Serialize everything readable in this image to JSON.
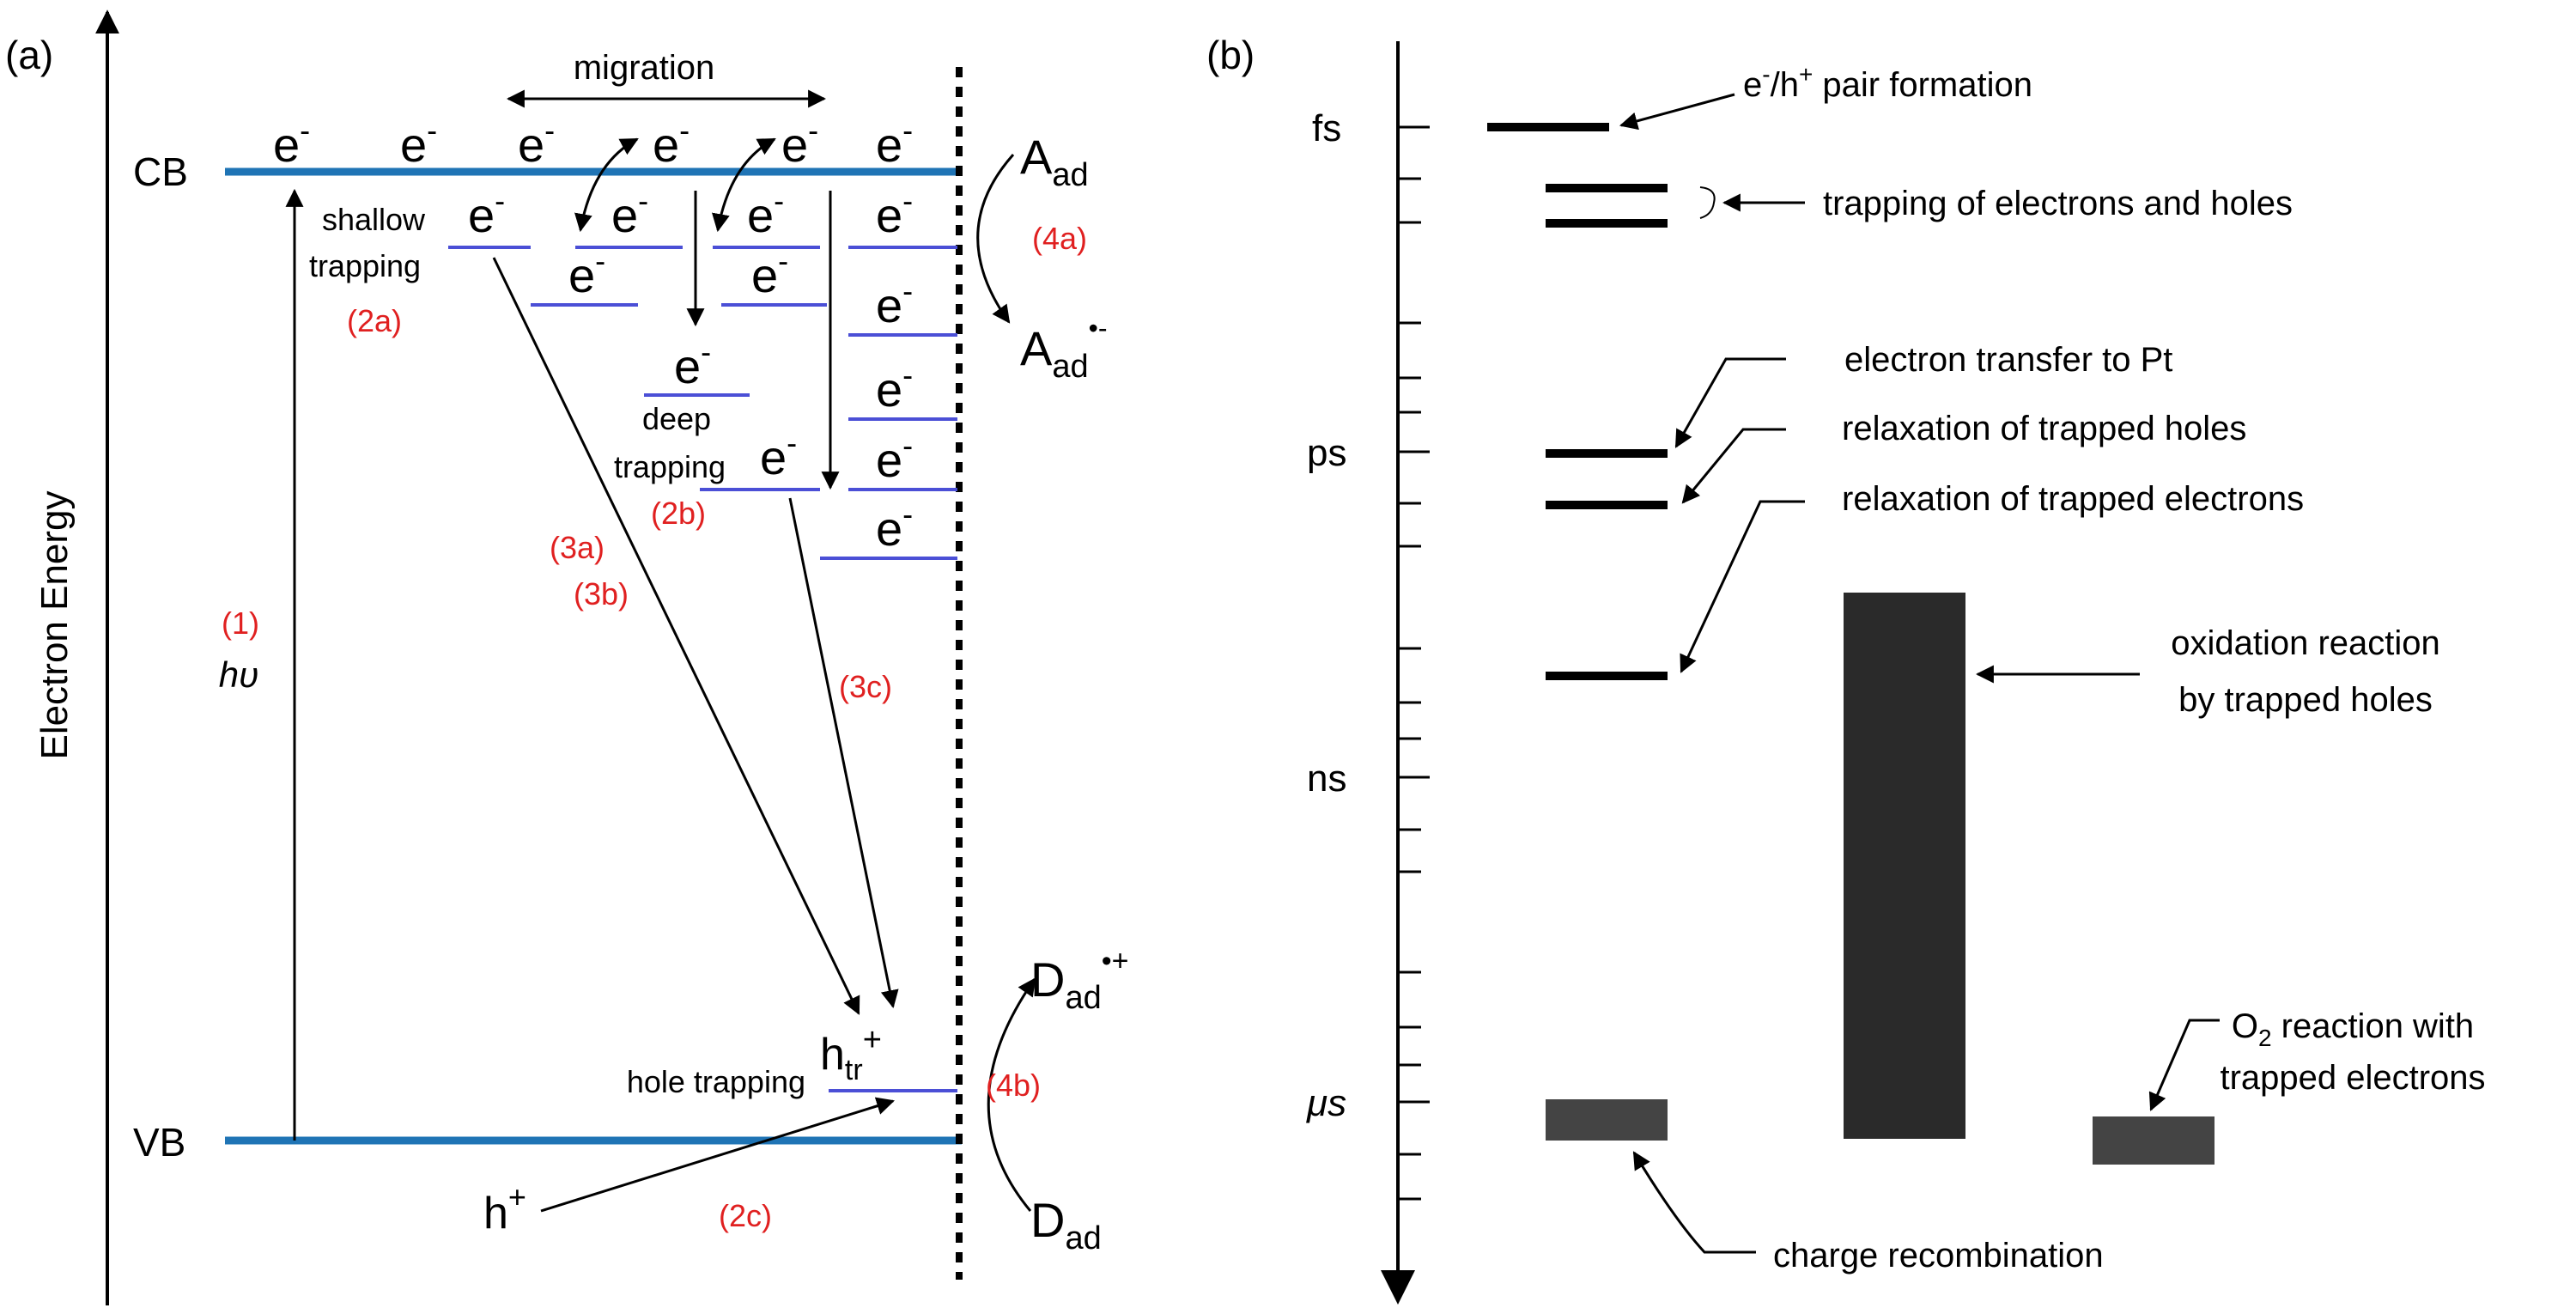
{
  "panel_a": {
    "label": "(a)",
    "axis_label": "Electron Energy",
    "cb_label": "CB",
    "vb_label": "VB",
    "migration_label": "migration",
    "electron": "e",
    "minus": "-",
    "shallow_label": "shallow",
    "trapping_label": "trapping",
    "deep_label": "deep",
    "step_1": "(1)",
    "hv": "hυ",
    "step_2a": "(2a)",
    "step_2b": "(2b)",
    "step_2c": "(2c)",
    "step_3a": "(3a)",
    "step_3b": "(3b)",
    "step_3c": "(3c)",
    "step_4a": "(4a)",
    "step_4b": "(4b)",
    "hole_trapping_label": "hole trapping",
    "h_tr": "h",
    "tr_sub": "tr",
    "plus": "+",
    "h_plus": "h",
    "a_ad": "A",
    "a_ad_minus_sup": "•-",
    "d_ad": "D",
    "d_ad_plus_sup": "•+",
    "ad_sub": "ad"
  },
  "panel_b": {
    "label": "(b)",
    "ticks": [
      "fs",
      "ps",
      "ns",
      "μs"
    ],
    "pair_formation": {
      "pre": "e",
      "sup1": "-",
      "mid": "/h",
      "sup2": "+",
      "post": " pair formation"
    },
    "trapping_eh": "trapping of electrons and holes",
    "electron_transfer_pt": "electron transfer to Pt",
    "relax_holes": "relaxation of trapped holes",
    "relax_electrons": "relaxation of trapped electrons",
    "oxidation_line1": "oxidation reaction",
    "oxidation_line2": "by trapped holes",
    "o2_pre": "O",
    "o2_sub": "2",
    "o2_line1_rest": " reaction with",
    "o2_line2": "trapped electrons",
    "charge_recombination": "charge recombination"
  },
  "colors": {
    "band": "#1f74b5",
    "trap_level": "#4b4fd6",
    "step_label": "#e02020",
    "bar": "#2a2a2a",
    "bar_light": "#444444"
  }
}
